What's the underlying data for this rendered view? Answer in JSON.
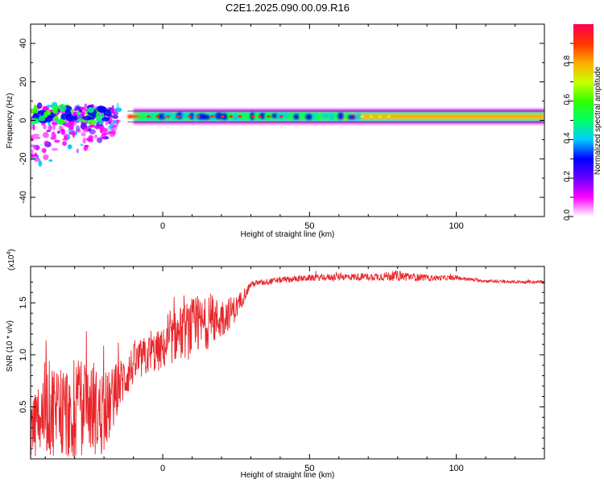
{
  "figure": {
    "title": "C2E1.2025.090.00.09.R16"
  },
  "chart_data": [
    {
      "type": "heatmap",
      "title": "C2E1.2025.090.00.09.R16",
      "xlabel": "Height of straight line (km)",
      "ylabel": "Frequency (Hz)",
      "xlim": [
        -45,
        130
      ],
      "ylim": [
        -50,
        50
      ],
      "xticks": [
        0,
        50,
        100
      ],
      "xtick_labels": [
        "0",
        "50",
        "100"
      ],
      "yticks": [
        -40,
        -20,
        0,
        20,
        40
      ],
      "ytick_labels": [
        "-40",
        "-20",
        "0",
        "20",
        "40"
      ],
      "colorbar": {
        "label": "Normalized spectral amplitude",
        "ticks": [
          0.0,
          0.2,
          0.4,
          0.6,
          0.8
        ],
        "tick_labels": [
          "0.0",
          "0.2",
          "0.4",
          "0.6",
          "0.8"
        ],
        "colors": [
          "#ffffff",
          "#ff00ff",
          "#6600ff",
          "#0000ff",
          "#00ccff",
          "#00ff66",
          "#33ff00",
          "#ccff00",
          "#ffaa00",
          "#ff3300",
          "#ff0055"
        ]
      },
      "features": {
        "band_center_hz": 2,
        "band_halfwidth_hz": 2.5,
        "scatter_region_x": [
          -45,
          -15
        ],
        "scatter_region_freq": [
          -25,
          8
        ]
      }
    },
    {
      "type": "line",
      "xlabel": "Height of straight line (km)",
      "ylabel": "SNR (10 * v/v)",
      "scale_label": "(x10",
      "scale_exponent": "4",
      "xlim": [
        -45,
        130
      ],
      "ylim": [
        0,
        1.85
      ],
      "xticks": [
        0,
        50,
        100
      ],
      "xtick_labels": [
        "0",
        "50",
        "100"
      ],
      "yticks": [
        0.5,
        1.0,
        1.5
      ],
      "ytick_labels": [
        "0.5",
        "1.0",
        "1.5"
      ],
      "series": [
        {
          "color": "#e8262b",
          "x": [
            -45,
            -40,
            -35,
            -30,
            -25,
            -20,
            -15,
            -10,
            -5,
            0,
            5,
            10,
            15,
            20,
            25,
            30,
            40,
            50,
            60,
            70,
            80,
            90,
            100,
            110,
            120,
            130
          ],
          "y": [
            0.25,
            0.5,
            0.45,
            0.45,
            0.5,
            0.4,
            0.7,
            0.9,
            1.0,
            1.05,
            1.2,
            1.25,
            1.3,
            1.35,
            1.45,
            1.68,
            1.72,
            1.74,
            1.75,
            1.75,
            1.76,
            1.74,
            1.74,
            1.71,
            1.7,
            1.7
          ],
          "noise": [
            0.3,
            0.45,
            0.5,
            0.5,
            0.45,
            0.4,
            0.25,
            0.2,
            0.2,
            0.2,
            0.25,
            0.3,
            0.25,
            0.2,
            0.12,
            0.03,
            0.03,
            0.03,
            0.035,
            0.035,
            0.05,
            0.03,
            0.02,
            0.015,
            0.015,
            0.015
          ]
        }
      ]
    }
  ]
}
